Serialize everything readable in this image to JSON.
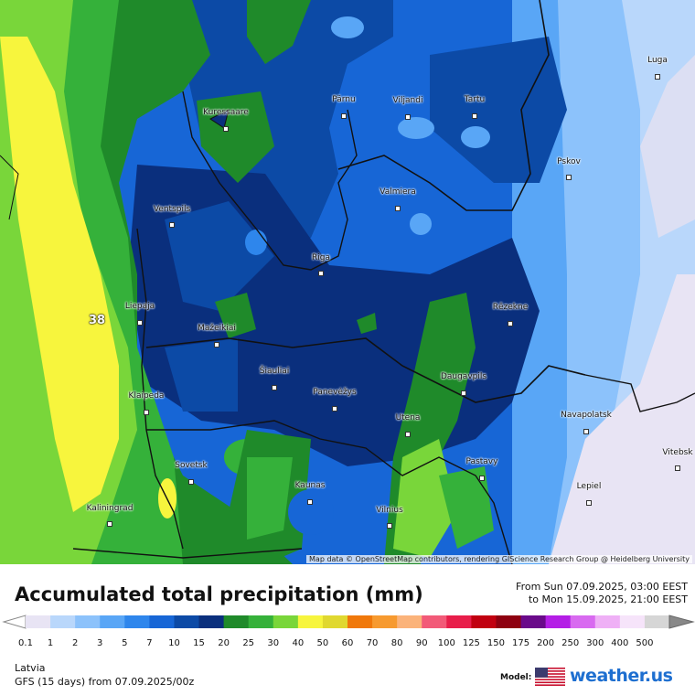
{
  "map": {
    "max_value_label": "38",
    "attribution": "Map data © OpenStreetMap contributors, rendering GIScience Research Group @ Heidelberg University",
    "cities": [
      {
        "name": "Kuressaare"
      },
      {
        "name": "Pärnu"
      },
      {
        "name": "Viljandi"
      },
      {
        "name": "Tartu"
      },
      {
        "name": "Luga"
      },
      {
        "name": "Pskov"
      },
      {
        "name": "Valmiera"
      },
      {
        "name": "Ventspils"
      },
      {
        "name": "Riga"
      },
      {
        "name": "Liepaja"
      },
      {
        "name": "Rēzekne"
      },
      {
        "name": "Mažeikiai"
      },
      {
        "name": "Šiauliai"
      },
      {
        "name": "Panevėžys"
      },
      {
        "name": "Daugavpils"
      },
      {
        "name": "Klaipeda"
      },
      {
        "name": "Utena"
      },
      {
        "name": "Navapolatsk"
      },
      {
        "name": "Sovetsk"
      },
      {
        "name": "Pastavy"
      },
      {
        "name": "Vitebsk"
      },
      {
        "name": "Kaunas"
      },
      {
        "name": "Lepiel"
      },
      {
        "name": "Kaliningrad"
      },
      {
        "name": "Vilnius"
      }
    ]
  },
  "legend": {
    "title": "Accumulated total precipitation (mm)",
    "from": "From Sun 07.09.2025, 03:00 EEST",
    "to": "to Mon 15.09.2025, 21:00 EEST",
    "ticks": [
      "0.1",
      "1",
      "2",
      "3",
      "5",
      "7",
      "10",
      "15",
      "20",
      "25",
      "30",
      "40",
      "50",
      "60",
      "70",
      "80",
      "90",
      "100",
      "125",
      "150",
      "175",
      "200",
      "250",
      "300",
      "400",
      "500"
    ],
    "colors": [
      "#e8e4f4",
      "#b9d7fb",
      "#8cc2fb",
      "#59a6f6",
      "#2e86ec",
      "#1766d6",
      "#0c4aa6",
      "#0a2f7d",
      "#1f8a2a",
      "#35b13a",
      "#79d63a",
      "#f7f53d",
      "#e0d830",
      "#f0780a",
      "#f79a2f",
      "#fbb37a",
      "#f25a78",
      "#e81e4a",
      "#c10010",
      "#8e0010",
      "#6a0a8a",
      "#b41ee6",
      "#d86af0",
      "#efb0f6",
      "#f6e4fa",
      "#d6d6d6"
    ]
  },
  "footer": {
    "region": "Latvia",
    "model_run": "GFS (15 days) from  07.09.2025/00z",
    "model_label": "Model:",
    "brand": "weather.us"
  }
}
